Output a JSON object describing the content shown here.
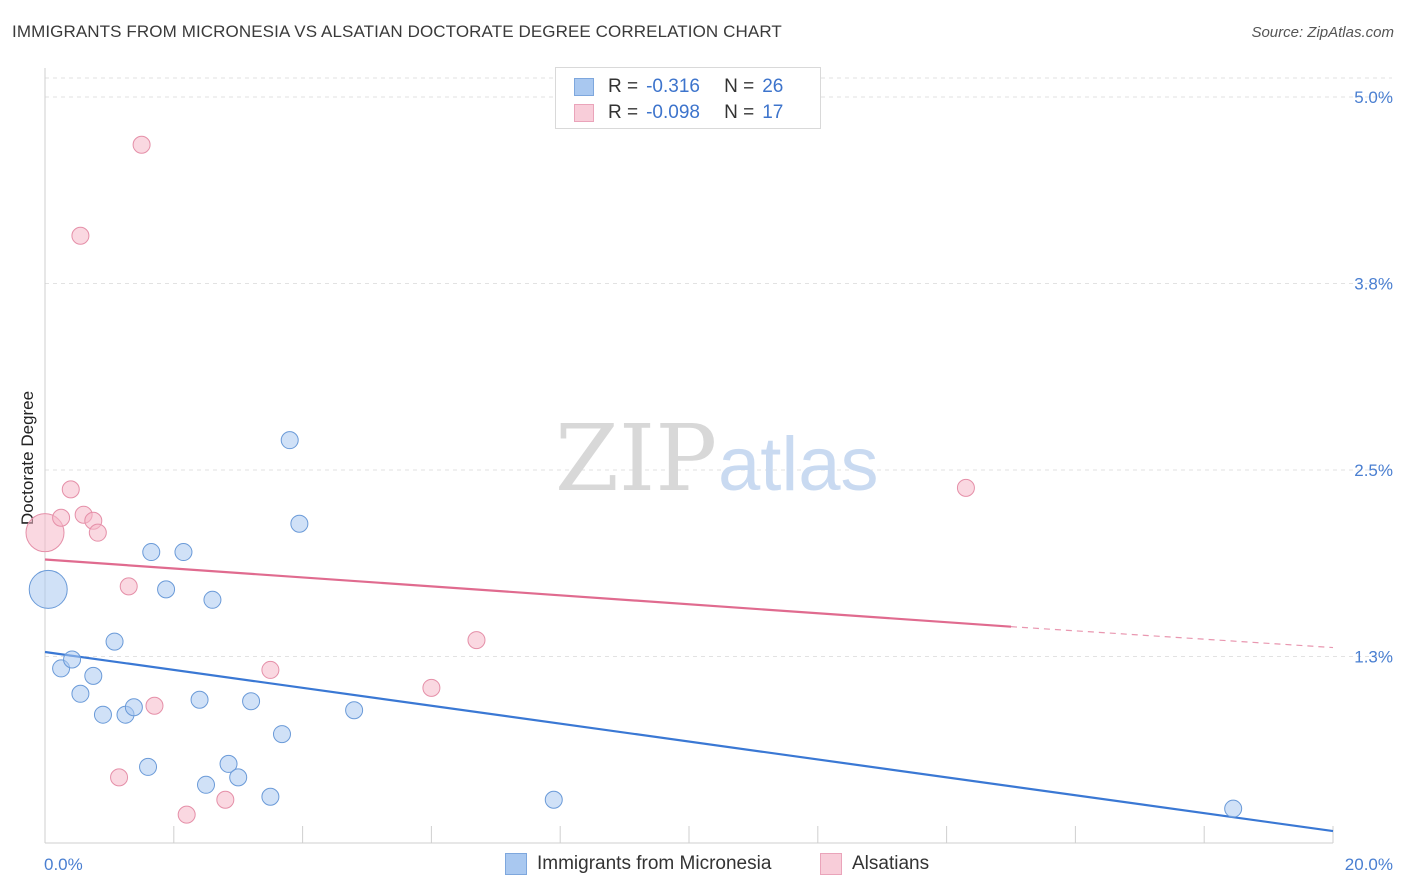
{
  "header": {
    "title": "IMMIGRANTS FROM MICRONESIA VS ALSATIAN DOCTORATE DEGREE CORRELATION CHART",
    "source": "Source: ZipAtlas.com"
  },
  "legend": {
    "rows": [
      {
        "r_label": "R =",
        "r_value": "-0.316",
        "n_label": "N =",
        "n_value": "26",
        "color": "#a9c8f0"
      },
      {
        "r_label": "R =",
        "r_value": "-0.098",
        "n_label": "N =",
        "n_value": "17",
        "color": "#f5b8c8"
      }
    ]
  },
  "chart_data": {
    "type": "scatter",
    "title": "IMMIGRANTS FROM MICRONESIA VS ALSATIAN DOCTORATE DEGREE CORRELATION CHART",
    "ylabel": "Doctorate Degree",
    "xlabel": "",
    "xlim": [
      0,
      20
    ],
    "ylim": [
      0,
      5.2
    ],
    "x_tick_labels": [
      "0.0%",
      "20.0%"
    ],
    "y_tick_labels": [
      "5.0%",
      "3.8%",
      "2.5%",
      "1.3%"
    ],
    "y_tick_values": [
      5.0,
      3.75,
      2.5,
      1.25
    ],
    "grid": "horizontal dashed",
    "legend_position": "top-center",
    "watermark": "ZIPatlas",
    "series": [
      {
        "name": "Immigrants from Micronesia",
        "color": "#a9c8f0",
        "stroke": "#6a9ad8",
        "trend_color": "#3a78d4",
        "trend": {
          "x0": 0,
          "y0": 1.28,
          "x1": 20,
          "y1": 0.08
        },
        "points": [
          {
            "x": 0.05,
            "y": 1.7,
            "big": true
          },
          {
            "x": 0.25,
            "y": 1.17
          },
          {
            "x": 0.42,
            "y": 1.23
          },
          {
            "x": 0.55,
            "y": 1.0
          },
          {
            "x": 0.75,
            "y": 1.12
          },
          {
            "x": 0.9,
            "y": 0.86
          },
          {
            "x": 1.08,
            "y": 1.35
          },
          {
            "x": 1.25,
            "y": 0.86
          },
          {
            "x": 1.38,
            "y": 0.91
          },
          {
            "x": 1.6,
            "y": 0.51
          },
          {
            "x": 1.65,
            "y": 1.95
          },
          {
            "x": 1.88,
            "y": 1.7
          },
          {
            "x": 2.15,
            "y": 1.95
          },
          {
            "x": 2.4,
            "y": 0.96
          },
          {
            "x": 2.5,
            "y": 0.39
          },
          {
            "x": 2.6,
            "y": 1.63
          },
          {
            "x": 2.85,
            "y": 0.53
          },
          {
            "x": 3.0,
            "y": 0.44
          },
          {
            "x": 3.2,
            "y": 0.95
          },
          {
            "x": 3.5,
            "y": 0.31
          },
          {
            "x": 3.68,
            "y": 0.73
          },
          {
            "x": 3.8,
            "y": 2.7
          },
          {
            "x": 3.95,
            "y": 2.14
          },
          {
            "x": 4.8,
            "y": 0.89
          },
          {
            "x": 7.9,
            "y": 0.29
          },
          {
            "x": 18.45,
            "y": 0.23
          }
        ]
      },
      {
        "name": "Alsatians",
        "color": "#f5b8c8",
        "stroke": "#e58fa8",
        "trend_color": "#e06b8f",
        "trend": {
          "x0": 0,
          "y0": 1.9,
          "x1": 15,
          "y1": 1.45,
          "x_dash_end": 20,
          "y_dash_end": 1.31
        },
        "points": [
          {
            "x": 0.0,
            "y": 2.08,
            "big": true
          },
          {
            "x": 0.25,
            "y": 2.18
          },
          {
            "x": 0.4,
            "y": 2.37
          },
          {
            "x": 0.55,
            "y": 4.07
          },
          {
            "x": 0.6,
            "y": 2.2
          },
          {
            "x": 0.75,
            "y": 2.16
          },
          {
            "x": 0.82,
            "y": 2.08
          },
          {
            "x": 1.15,
            "y": 0.44
          },
          {
            "x": 1.3,
            "y": 1.72
          },
          {
            "x": 1.5,
            "y": 4.68
          },
          {
            "x": 1.7,
            "y": 0.92
          },
          {
            "x": 2.2,
            "y": 0.19
          },
          {
            "x": 2.8,
            "y": 0.29
          },
          {
            "x": 3.5,
            "y": 1.16
          },
          {
            "x": 6.0,
            "y": 1.04
          },
          {
            "x": 6.7,
            "y": 1.36
          },
          {
            "x": 14.3,
            "y": 2.38
          }
        ]
      }
    ]
  }
}
